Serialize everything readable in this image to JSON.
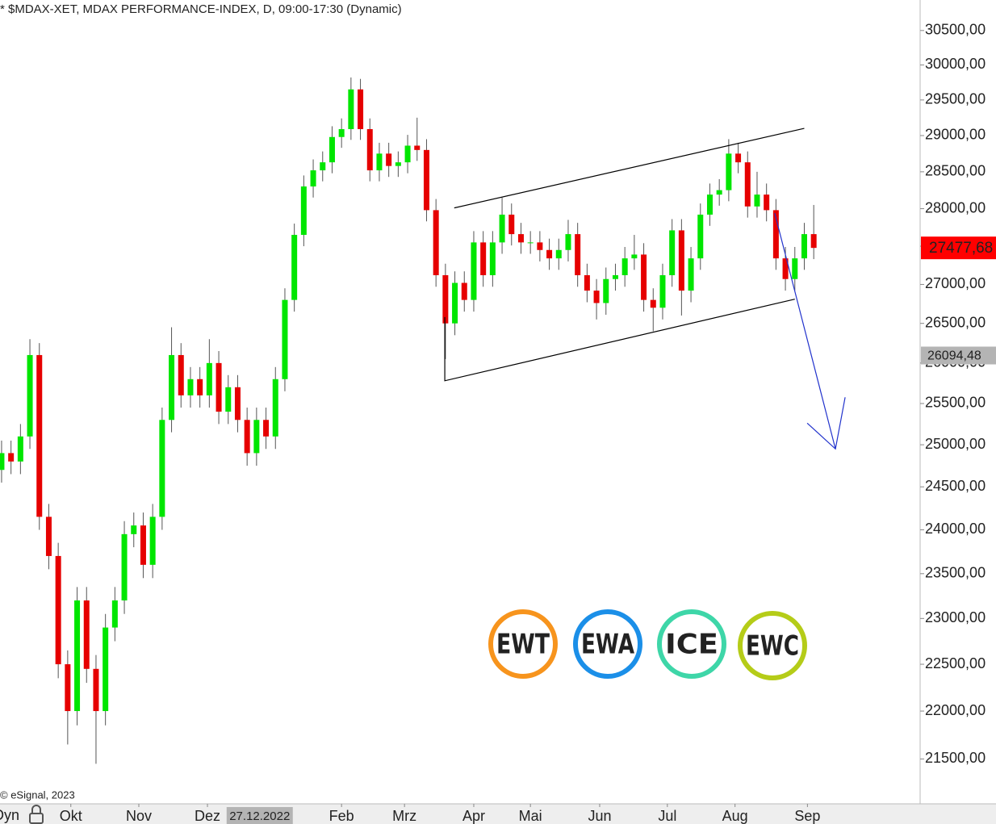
{
  "chart_data": {
    "type": "candlestick",
    "title": "* $MDAX-XET, MDAX PERFORMANCE-INDEX, D, 09:00-17:30 (Dynamic)",
    "copyright": "© eSignal, 2023",
    "left_label": "Dyn",
    "log": true,
    "up_color": "#00e600",
    "down_color": "#e60000",
    "xlim": [
      -0.5,
      291.8
    ],
    "ylim": [
      21050,
      30950
    ],
    "x": [
      0,
      3,
      6,
      9,
      12,
      15,
      18,
      21,
      24,
      27,
      30,
      33,
      36,
      39,
      42,
      45,
      48,
      51,
      54,
      57,
      60,
      63,
      66,
      69,
      72,
      75,
      78,
      81,
      84,
      87,
      90,
      93,
      96,
      99,
      102,
      105,
      108,
      111,
      114,
      117,
      120,
      123,
      126,
      129,
      132,
      135,
      138,
      141,
      144,
      147,
      150,
      153,
      156,
      159,
      162,
      165,
      168,
      171,
      174,
      177,
      180,
      183,
      186,
      189,
      192,
      195,
      198,
      201,
      204,
      207,
      210,
      213,
      216,
      219,
      222,
      225,
      228,
      231,
      234,
      237,
      240,
      243,
      246,
      249,
      252,
      255,
      258
    ],
    "open": [
      24700,
      24900,
      24800,
      25100,
      26100,
      24150,
      23700,
      22500,
      22000,
      23200,
      22450,
      22000,
      22900,
      23200,
      23950,
      24050,
      23600,
      24150,
      25300,
      26100,
      25600,
      25800,
      25600,
      26000,
      25400,
      25700,
      25300,
      24900,
      25300,
      25100,
      25800,
      26800,
      27650,
      28300,
      28520,
      28630,
      28980,
      29090,
      29650,
      29090,
      28520,
      28750,
      28580,
      28630,
      28860,
      28800,
      27980,
      27120,
      26500,
      27020,
      26800,
      27550,
      27120,
      27550,
      27920,
      27660,
      27550,
      27550,
      27450,
      27340,
      27450,
      27660,
      27120,
      26920,
      26760,
      27070,
      27120,
      27340,
      27390,
      26800,
      26700,
      27120,
      27710,
      26920,
      27340,
      27920,
      28190,
      28250,
      28750,
      28630,
      28030,
      28190,
      27980,
      27340,
      27070,
      27340,
      27660
    ],
    "high": [
      25050,
      25050,
      25250,
      26300,
      26250,
      24300,
      23850,
      22650,
      23350,
      23350,
      22600,
      23050,
      23350,
      24100,
      24200,
      24200,
      24300,
      25450,
      26450,
      26250,
      25950,
      25950,
      26300,
      26150,
      25850,
      25850,
      25450,
      25450,
      25450,
      25950,
      26950,
      27800,
      28450,
      28670,
      28780,
      29130,
      29240,
      29820,
      29800,
      29240,
      28900,
      28900,
      28780,
      29010,
      29250,
      28950,
      28130,
      27270,
      27170,
      27170,
      27700,
      27700,
      27700,
      28150,
      28070,
      27810,
      27700,
      27700,
      27600,
      27600,
      27850,
      27810,
      27270,
      27070,
      27220,
      27270,
      27490,
      27650,
      27540,
      26950,
      27270,
      27860,
      27860,
      27490,
      28070,
      28340,
      28400,
      28950,
      28900,
      28780,
      28500,
      28340,
      28130,
      27490,
      27490,
      27810,
      28050
    ],
    "low": [
      24550,
      24650,
      24650,
      24950,
      24000,
      23550,
      22350,
      21650,
      21850,
      22300,
      21450,
      21850,
      22750,
      23050,
      23800,
      23450,
      23450,
      24000,
      25150,
      25450,
      25450,
      25450,
      25450,
      25250,
      25250,
      25150,
      24750,
      24750,
      24950,
      24950,
      25650,
      26650,
      27500,
      28150,
      28370,
      28480,
      28830,
      28940,
      28940,
      28370,
      28370,
      28430,
      28430,
      28480,
      28650,
      27830,
      26970,
      26050,
      26350,
      26650,
      26650,
      26970,
      26970,
      27400,
      27510,
      27400,
      27400,
      27300,
      27190,
      27190,
      27300,
      26970,
      26770,
      26550,
      26610,
      26920,
      26970,
      27190,
      26650,
      26400,
      26550,
      26970,
      26600,
      26770,
      27190,
      27770,
      28040,
      28100,
      28480,
      27880,
      27880,
      27830,
      27190,
      26920,
      26920,
      27190,
      27330
    ],
    "close": [
      24900,
      24800,
      25100,
      26100,
      24150,
      23700,
      22500,
      22000,
      23200,
      22450,
      22000,
      22900,
      23200,
      23950,
      24050,
      23600,
      24150,
      25300,
      26100,
      25600,
      25800,
      25600,
      26000,
      25400,
      25700,
      25300,
      24900,
      25300,
      25100,
      25800,
      26800,
      27650,
      28300,
      28520,
      28630,
      28980,
      29090,
      29650,
      29090,
      28520,
      28750,
      28580,
      28630,
      28860,
      28800,
      27980,
      27120,
      26500,
      27020,
      26800,
      27550,
      27120,
      27550,
      27920,
      27660,
      27550,
      27550,
      27450,
      27340,
      27450,
      27660,
      27120,
      26920,
      26760,
      27070,
      27120,
      27340,
      27390,
      26800,
      26700,
      27120,
      27710,
      26920,
      27340,
      27920,
      28190,
      28250,
      28750,
      28630,
      28030,
      28190,
      27980,
      27340,
      27070,
      27340,
      27660,
      27477.68
    ],
    "yticks": [
      {
        "value": 21500,
        "label": "21500,00"
      },
      {
        "value": 22000,
        "label": "22000,00"
      },
      {
        "value": 22500,
        "label": "22500,00"
      },
      {
        "value": 23000,
        "label": "23000,00"
      },
      {
        "value": 23500,
        "label": "23500,00"
      },
      {
        "value": 24000,
        "label": "24000,00"
      },
      {
        "value": 24500,
        "label": "24500,00"
      },
      {
        "value": 25000,
        "label": "25000,00"
      },
      {
        "value": 25500,
        "label": "25500,00"
      },
      {
        "value": 26000,
        "label": "26000,00"
      },
      {
        "value": 26500,
        "label": "26500,00"
      },
      {
        "value": 27000,
        "label": "27000,00"
      },
      {
        "value": 27500,
        "label": "27500,00"
      },
      {
        "value": 28000,
        "label": "28000,00"
      },
      {
        "value": 28500,
        "label": "28500,00"
      },
      {
        "value": 29000,
        "label": "29000,00"
      },
      {
        "value": 29500,
        "label": "29500,00"
      },
      {
        "value": 30000,
        "label": "30000,00"
      },
      {
        "value": 30500,
        "label": "30500,00"
      }
    ],
    "xticks": [
      {
        "value": 22,
        "label": "Okt"
      },
      {
        "value": 43.6,
        "label": "Nov"
      },
      {
        "value": 65.4,
        "label": "Dez"
      },
      {
        "value": 108,
        "label": "Feb"
      },
      {
        "value": 128,
        "label": "Mrz"
      },
      {
        "value": 150,
        "label": "Apr"
      },
      {
        "value": 168,
        "label": "Mai"
      },
      {
        "value": 190,
        "label": "Jun"
      },
      {
        "value": 211.5,
        "label": "Jul"
      },
      {
        "value": 233,
        "label": "Aug"
      },
      {
        "value": 256,
        "label": "Sep"
      }
    ],
    "x_marker": {
      "value": 82,
      "label": "27.12.2022"
    },
    "price_markers": [
      {
        "value": 27477.68,
        "label": "27477,68",
        "color": "#ff0000"
      },
      {
        "value": 26094.48,
        "label": "26094,48",
        "color": "#b4b4b4"
      }
    ],
    "trendlines": [
      {
        "x": [
          143.8,
          255
        ],
        "y": [
          28010,
          29100
        ],
        "color": "#000000"
      },
      {
        "x": [
          140.8,
          140.8,
          252
        ],
        "y": [
          26580,
          25780,
          26810
        ],
        "color": "#000000"
      },
      {
        "x": [
          245.6,
          264.9
        ],
        "y": [
          27940,
          24950
        ],
        "color": "#2233cc"
      }
    ],
    "logos": [
      {
        "label": "EWT",
        "color": "#f7941d"
      },
      {
        "label": "EWA",
        "color": "#1b8fe8"
      },
      {
        "label": "ICE",
        "color": "#3ed6a8"
      },
      {
        "label": "EWC",
        "color": "#b5cc18"
      }
    ]
  }
}
